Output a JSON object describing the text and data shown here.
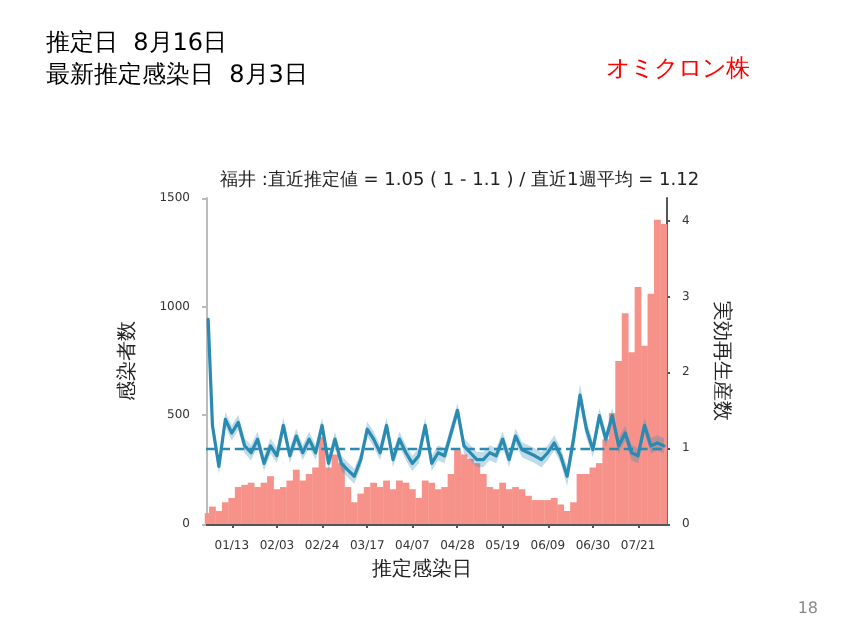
{
  "chart_data": {
    "type": "bar",
    "title": "推定日  8月16日",
    "subtitle": "最新推定感染日  8月3日",
    "annotations": [
      "オミクロン株",
      "福井 :直近推定値 = 1.05 ( 1 - 1.1 ) / 直近1週平均 = 1.12",
      "18"
    ],
    "xlabel": "推定感染日",
    "ylabel": "感染者数",
    "y2label": "実効再生産数",
    "x": [
      "--01-02",
      "--01-04",
      "--01-07",
      "--01-10",
      "--01-13",
      "--01-16",
      "--01-19",
      "--01-22",
      "--01-25",
      "--01-28",
      "--01-31",
      "--02-03",
      "--02-06",
      "--02-09",
      "--02-12",
      "--02-15",
      "--02-18",
      "--02-21",
      "--02-24",
      "--02-27",
      "--03-02",
      "--03-05",
      "--03-08",
      "--03-11",
      "--03-14",
      "--03-17",
      "--03-20",
      "--03-23",
      "--03-26",
      "--03-29",
      "--04-01",
      "--04-04",
      "--04-07",
      "--04-10",
      "--04-13",
      "--04-16",
      "--04-19",
      "--04-22",
      "--04-25",
      "--04-28",
      "--05-01",
      "--05-04",
      "--05-07",
      "--05-10",
      "--05-13",
      "--05-16",
      "--05-19",
      "--05-22",
      "--05-25",
      "--05-28",
      "--05-31",
      "--06-03",
      "--06-06",
      "--06-09",
      "--06-12",
      "--06-15",
      "--06-18",
      "--06-21",
      "--06-24",
      "--06-27",
      "--06-30",
      "--07-03",
      "--07-06",
      "--07-09",
      "--07-12",
      "--07-15",
      "--07-18",
      "--07-21",
      "--07-24",
      "--07-27",
      "--07-30",
      "--08-02"
    ],
    "series": [
      {
        "color": "#f6928a",
        "values": [
          50,
          80,
          60,
          100,
          120,
          170,
          180,
          190,
          170,
          190,
          220,
          160,
          170,
          200,
          250,
          200,
          230,
          260,
          400,
          260,
          320,
          280,
          170,
          100,
          140,
          170,
          190,
          170,
          200,
          160,
          200,
          190,
          160,
          120,
          200,
          190,
          160,
          170,
          230,
          340,
          320,
          300,
          280,
          230,
          170,
          160,
          190,
          160,
          170,
          160,
          130,
          110,
          110,
          110,
          120,
          90,
          60,
          100,
          230,
          230,
          260,
          280,
          390,
          510,
          750,
          970,
          790,
          1090,
          820,
          1060,
          1400,
          1380
        ]
      },
      {
        "type": "line",
        "axis": "y2",
        "color": "#2a8bb2",
        "values": [
          2.7,
          1.3,
          0.76,
          1.38,
          1.2,
          1.34,
          1.03,
          0.94,
          1.12,
          0.8,
          1.03,
          0.9,
          1.3,
          0.9,
          1.16,
          0.94,
          1.12,
          0.94,
          1.3,
          0.8,
          1.12,
          0.8,
          0.71,
          0.63,
          0.85,
          1.25,
          1.12,
          0.94,
          1.3,
          0.85,
          1.12,
          0.94,
          0.8,
          0.9,
          1.3,
          0.8,
          0.94,
          0.9,
          1.2,
          1.5,
          1.03,
          0.94,
          0.85,
          0.85,
          0.94,
          0.9,
          1.12,
          0.85,
          1.16,
          0.98,
          0.94,
          0.9,
          0.85,
          0.94,
          1.07,
          0.9,
          0.63,
          1.12,
          1.7,
          1.25,
          0.98,
          1.43,
          1.12,
          1.43,
          1.03,
          1.2,
          0.94,
          0.9,
          1.3,
          1.03,
          1.07,
          1.03
        ],
        "lower": [
          2.6,
          1.2,
          0.66,
          1.28,
          1.1,
          1.24,
          0.93,
          0.84,
          1.02,
          0.7,
          0.93,
          0.8,
          1.2,
          0.8,
          1.06,
          0.84,
          1.02,
          0.84,
          1.2,
          0.7,
          1.02,
          0.7,
          0.61,
          0.53,
          0.75,
          1.15,
          1.02,
          0.84,
          1.2,
          0.75,
          1.02,
          0.84,
          0.7,
          0.8,
          1.2,
          0.7,
          0.84,
          0.8,
          1.1,
          1.4,
          0.93,
          0.84,
          0.75,
          0.75,
          0.84,
          0.8,
          1.02,
          0.75,
          1.06,
          0.88,
          0.84,
          0.8,
          0.75,
          0.84,
          0.97,
          0.8,
          0.5,
          0.97,
          1.55,
          1.13,
          0.88,
          1.33,
          1.02,
          1.33,
          0.93,
          1.1,
          0.84,
          0.8,
          1.2,
          0.93,
          0.97,
          0.93
        ],
        "upper": [
          2.8,
          1.4,
          0.86,
          1.48,
          1.3,
          1.44,
          1.13,
          1.04,
          1.22,
          0.9,
          1.13,
          1.0,
          1.4,
          1.0,
          1.26,
          1.04,
          1.22,
          1.04,
          1.4,
          0.9,
          1.22,
          0.9,
          0.81,
          0.73,
          0.95,
          1.35,
          1.22,
          1.04,
          1.4,
          0.95,
          1.22,
          1.04,
          0.9,
          1.0,
          1.4,
          0.9,
          1.04,
          1.0,
          1.3,
          1.6,
          1.13,
          1.04,
          0.95,
          0.95,
          1.04,
          1.0,
          1.22,
          0.95,
          1.26,
          1.08,
          1.04,
          1.0,
          0.95,
          1.04,
          1.17,
          1.0,
          0.76,
          1.27,
          1.85,
          1.37,
          1.08,
          1.53,
          1.22,
          1.53,
          1.13,
          1.3,
          1.04,
          1.0,
          1.4,
          1.13,
          1.17,
          1.13
        ]
      }
    ],
    "xlim": [
      "--01-01",
      "--08-03"
    ],
    "xticks": [
      {
        "value": "--01-13",
        "label": "01/13"
      },
      {
        "value": "--02-03",
        "label": "02/03"
      },
      {
        "value": "--02-24",
        "label": "02/24"
      },
      {
        "value": "--03-17",
        "label": "03/17"
      },
      {
        "value": "--04-07",
        "label": "04/07"
      },
      {
        "value": "--04-28",
        "label": "04/28"
      },
      {
        "value": "--05-19",
        "label": "05/19"
      },
      {
        "value": "--06-09",
        "label": "06/09"
      },
      {
        "value": "--06-30",
        "label": "06/30"
      },
      {
        "value": "--07-21",
        "label": "07/21"
      }
    ],
    "ylim": [
      0,
      1500
    ],
    "yticks": [
      0,
      500,
      1000,
      1500
    ],
    "y2lim": [
      0,
      4.3
    ],
    "y2ticks": [
      0,
      1,
      2,
      3,
      4
    ],
    "ref_lines": [
      {
        "axis": "y2",
        "value": 1,
        "color": "#2a8bb2",
        "line_style": "dashed"
      }
    ],
    "grid": false
  }
}
